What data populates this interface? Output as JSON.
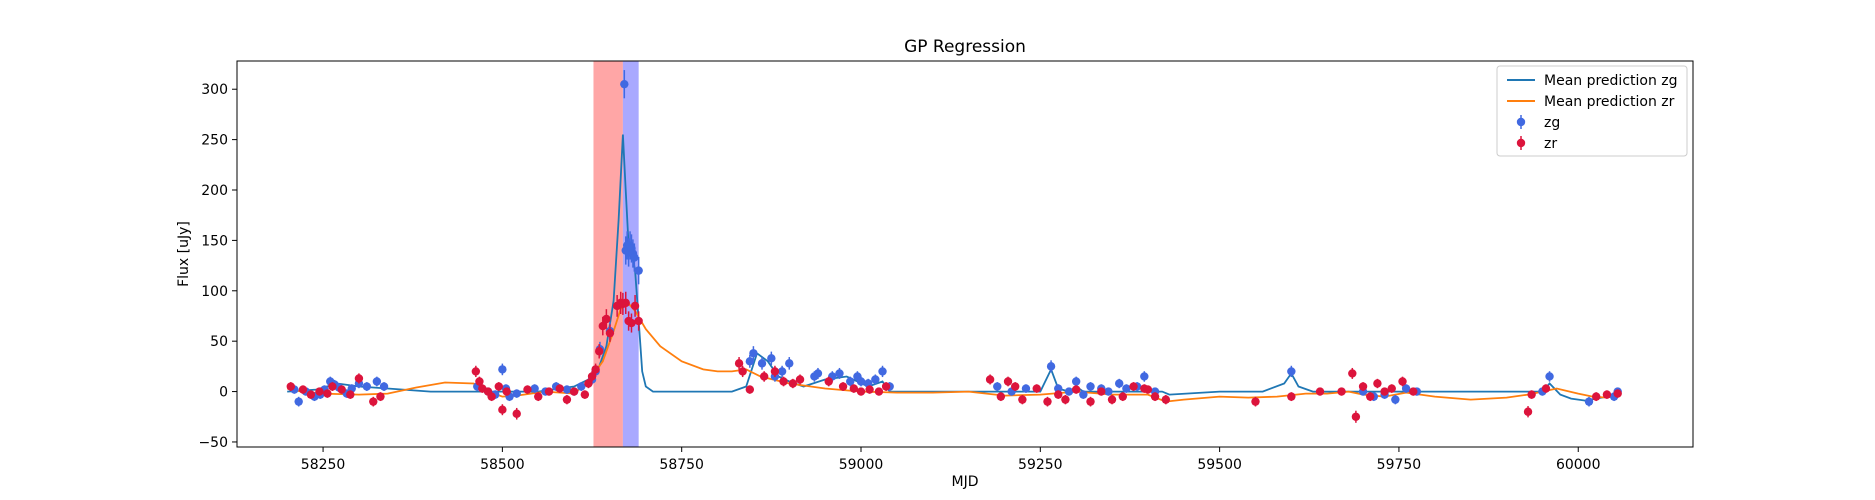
{
  "chart_data": {
    "type": "scatter",
    "title": "GP Regression",
    "xlabel": "MJD",
    "ylabel": "Flux [uJy]",
    "xlim": [
      58130,
      60160
    ],
    "ylim": [
      -55,
      328
    ],
    "xticks": [
      58250,
      58500,
      58750,
      59000,
      59250,
      59500,
      59750,
      60000
    ],
    "yticks": [
      -50,
      0,
      50,
      100,
      150,
      200,
      250,
      300
    ],
    "grid": false,
    "legend_position": "upper right",
    "colors": {
      "mean_zg": "#1f77b4",
      "mean_zr": "#ff7f0e",
      "zg": "#4169e1",
      "zr": "#dc143c",
      "span_red": "#ff6b6b",
      "span_blue": "#6f6fff"
    },
    "spans": [
      {
        "x0": 58627,
        "x1": 58668,
        "color": "#ff6b6b",
        "opacity": 0.6
      },
      {
        "x0": 58668,
        "x1": 58690,
        "color": "#6f6fff",
        "opacity": 0.6
      }
    ],
    "series": [
      {
        "name": "Mean prediction zg",
        "kind": "line",
        "x": [
          58200,
          58240,
          58270,
          58300,
          58340,
          58400,
          58450,
          58500,
          58550,
          58600,
          58620,
          58635,
          58645,
          58655,
          58662,
          58668,
          58672,
          58676,
          58680,
          58685,
          58690,
          58695,
          58700,
          58710,
          58720,
          58750,
          58800,
          58820,
          58840,
          58855,
          58870,
          58885,
          58900,
          58920,
          58950,
          58980,
          59010,
          59030,
          59040,
          59100,
          59200,
          59250,
          59265,
          59275,
          59290,
          59300,
          59310,
          59350,
          59400,
          59420,
          59430,
          59500,
          59560,
          59590,
          59600,
          59610,
          59630,
          59700,
          59800,
          59900,
          59950,
          59960,
          59975,
          59990,
          60010,
          60040,
          60060
        ],
        "y": [
          0,
          2,
          8,
          5,
          3,
          0,
          0,
          0,
          0,
          5,
          12,
          25,
          45,
          90,
          170,
          255,
          200,
          145,
          140,
          120,
          70,
          20,
          5,
          0,
          0,
          0,
          0,
          0,
          5,
          38,
          30,
          15,
          10,
          5,
          12,
          15,
          5,
          10,
          0,
          0,
          0,
          0,
          22,
          3,
          0,
          5,
          0,
          0,
          0,
          0,
          -3,
          0,
          0,
          8,
          18,
          5,
          0,
          0,
          0,
          0,
          0,
          8,
          -3,
          -7,
          -9,
          -5,
          0
        ]
      },
      {
        "name": "Mean prediction zr",
        "kind": "line",
        "x": [
          58200,
          58220,
          58250,
          58300,
          58340,
          58380,
          58420,
          58460,
          58480,
          58500,
          58520,
          58560,
          58600,
          58620,
          58640,
          58655,
          58665,
          58675,
          58685,
          58700,
          58720,
          58750,
          58780,
          58800,
          58820,
          58840,
          58860,
          58900,
          58950,
          59000,
          59050,
          59100,
          59150,
          59200,
          59250,
          59300,
          59350,
          59400,
          59425,
          59450,
          59500,
          59540,
          59580,
          59620,
          59650,
          59680,
          59700,
          59730,
          59760,
          59800,
          59850,
          59900,
          59930,
          59950,
          59970,
          60000,
          60020,
          60040,
          60060
        ],
        "y": [
          3,
          0,
          -2,
          -3,
          -2,
          4,
          9,
          8,
          0,
          -5,
          -4,
          0,
          -2,
          10,
          30,
          60,
          82,
          88,
          80,
          62,
          45,
          30,
          22,
          20,
          20,
          22,
          15,
          8,
          3,
          0,
          -1,
          -1,
          0,
          -4,
          -3,
          0,
          -3,
          -3,
          -10,
          -8,
          -5,
          -6,
          -5,
          -2,
          -2,
          0,
          -3,
          -5,
          -1,
          -5,
          -8,
          -6,
          -3,
          0,
          3,
          -2,
          -5,
          -6,
          -2
        ]
      },
      {
        "name": "zg",
        "kind": "points",
        "x": [
          58210,
          58216,
          58226,
          58238,
          58246,
          58252,
          58260,
          58266,
          58272,
          58283,
          58290,
          58300,
          58311,
          58325,
          58335,
          58465,
          58480,
          58490,
          58500,
          58505,
          58510,
          58520,
          58545,
          58560,
          58575,
          58590,
          58600,
          58610,
          58625,
          58630,
          58636,
          58650,
          58670,
          58672,
          58674,
          58676,
          58678,
          58680,
          58682,
          58684,
          58690,
          58845,
          58850,
          58862,
          58875,
          58880,
          58890,
          58900,
          58935,
          58940,
          58960,
          58970,
          58985,
          58995,
          59000,
          59010,
          59020,
          59030,
          59040,
          59190,
          59210,
          59230,
          59265,
          59275,
          59290,
          59300,
          59310,
          59320,
          59335,
          59345,
          59360,
          59370,
          59385,
          59395,
          59410,
          59600,
          59700,
          59715,
          59730,
          59745,
          59760,
          59775,
          59950,
          59960,
          60015,
          60050,
          60055
        ],
        "y": [
          2,
          -10,
          0,
          -5,
          -3,
          2,
          10,
          7,
          4,
          -2,
          3,
          8,
          5,
          10,
          5,
          5,
          0,
          -3,
          22,
          3,
          -5,
          -2,
          3,
          0,
          5,
          2,
          0,
          5,
          12,
          20,
          42,
          60,
          305,
          140,
          145,
          138,
          145,
          142,
          137,
          133,
          120,
          30,
          38,
          28,
          33,
          15,
          20,
          28,
          15,
          18,
          15,
          18,
          10,
          15,
          10,
          8,
          12,
          20,
          5,
          5,
          0,
          3,
          25,
          3,
          0,
          10,
          -3,
          5,
          3,
          0,
          8,
          3,
          5,
          15,
          0,
          20,
          0,
          -5,
          -3,
          -8,
          3,
          0,
          0,
          15,
          -10,
          -5,
          0
        ]
      },
      {
        "name": "zr",
        "kind": "points",
        "x": [
          58205,
          58222,
          58233,
          58245,
          58256,
          58263,
          58276,
          58288,
          58300,
          58320,
          58330,
          58463,
          58468,
          58472,
          58480,
          58485,
          58495,
          58500,
          58506,
          58520,
          58535,
          58550,
          58565,
          58580,
          58590,
          58600,
          58615,
          58620,
          58625,
          58630,
          58635,
          58640,
          58645,
          58650,
          58660,
          58665,
          58668,
          58672,
          58676,
          58680,
          58685,
          58690,
          58830,
          58835,
          58845,
          58865,
          58880,
          58892,
          58905,
          58915,
          58955,
          58975,
          58990,
          59000,
          59012,
          59025,
          59035,
          59180,
          59195,
          59205,
          59215,
          59225,
          59245,
          59260,
          59275,
          59285,
          59300,
          59320,
          59335,
          59350,
          59365,
          59380,
          59395,
          59400,
          59410,
          59425,
          59550,
          59600,
          59640,
          59670,
          59685,
          59690,
          59700,
          59710,
          59720,
          59730,
          59740,
          59755,
          59770,
          59930,
          59935,
          59955,
          60025,
          60040,
          60055
        ],
        "y": [
          5,
          2,
          -3,
          0,
          -2,
          5,
          2,
          -3,
          13,
          -10,
          -5,
          20,
          10,
          3,
          0,
          -5,
          5,
          -18,
          0,
          -22,
          2,
          -5,
          0,
          3,
          -8,
          0,
          -3,
          8,
          15,
          22,
          40,
          65,
          72,
          58,
          85,
          88,
          87,
          88,
          70,
          68,
          85,
          70,
          28,
          20,
          2,
          15,
          20,
          10,
          8,
          12,
          10,
          5,
          3,
          0,
          2,
          0,
          5,
          12,
          -5,
          10,
          5,
          -8,
          3,
          -10,
          -3,
          -8,
          2,
          -10,
          0,
          -8,
          -5,
          5,
          3,
          2,
          -5,
          -8,
          -10,
          -5,
          0,
          0,
          18,
          -25,
          5,
          -5,
          8,
          0,
          3,
          10,
          0,
          -20,
          -3,
          3,
          -5,
          -3,
          -2
        ]
      }
    ]
  }
}
